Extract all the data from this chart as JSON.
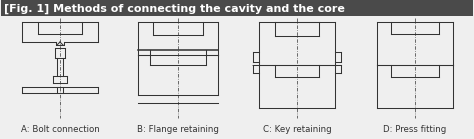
{
  "title": "[Fig. 1] Methods of connecting the cavity and the core",
  "title_bg_color": "#4a4a4a",
  "title_text_color": "#ffffff",
  "bg_color": "#efefef",
  "line_color": "#333333",
  "labels": [
    "A: Bolt connection",
    "B: Flange retaining",
    "C: Key retaining",
    "D: Press fitting"
  ],
  "label_fontsize": 6.2,
  "title_fontsize": 8.0,
  "fig_width": 4.74,
  "fig_height": 1.39,
  "centers": [
    60,
    178,
    297,
    415
  ]
}
